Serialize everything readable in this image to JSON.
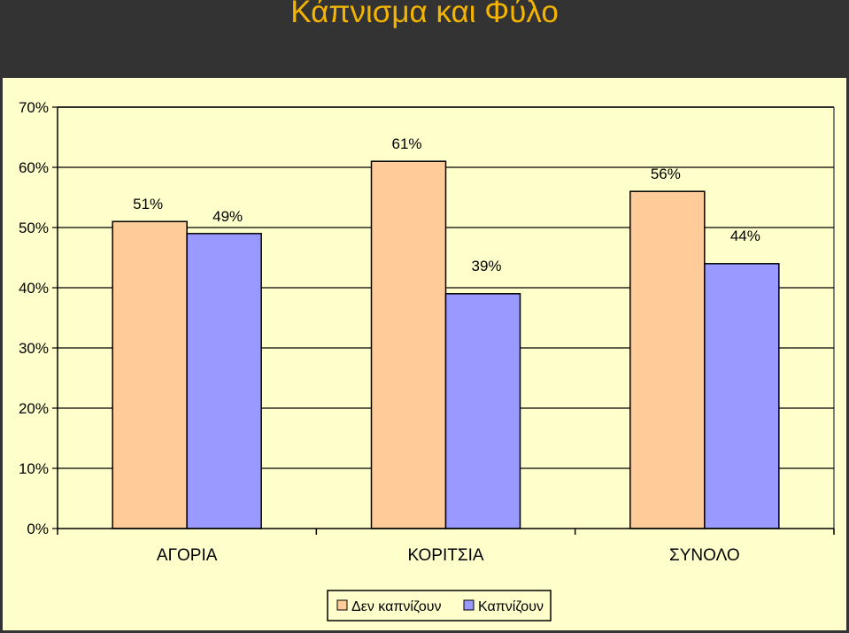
{
  "chart_data": {
    "type": "bar",
    "title": "Κάπνισμα και Φύλο",
    "categories": [
      "ΑΓΟΡΙΑ",
      "ΚΟΡΙΤΣΙΑ",
      "ΣΥΝΟΛΟ"
    ],
    "series": [
      {
        "name": "Δεν καπνίζουν",
        "values": [
          51,
          61,
          56
        ],
        "labels": [
          "51%",
          "61%",
          "56%"
        ],
        "color": "#ffcc99"
      },
      {
        "name": "Καπνίζουν",
        "values": [
          49,
          39,
          44
        ],
        "labels": [
          "49%",
          "39%",
          "44%"
        ],
        "color": "#9999ff"
      }
    ],
    "ylim": [
      0,
      70
    ],
    "yticks": [
      0,
      10,
      20,
      30,
      40,
      50,
      60,
      70
    ],
    "ytick_labels": [
      "0%",
      "10%",
      "20%",
      "30%",
      "40%",
      "50%",
      "60%",
      "70%"
    ],
    "grid": true,
    "legend_position": "bottom",
    "colors": {
      "background": "#ffffcc",
      "frame": "#333333",
      "title": "#f4b400"
    }
  }
}
